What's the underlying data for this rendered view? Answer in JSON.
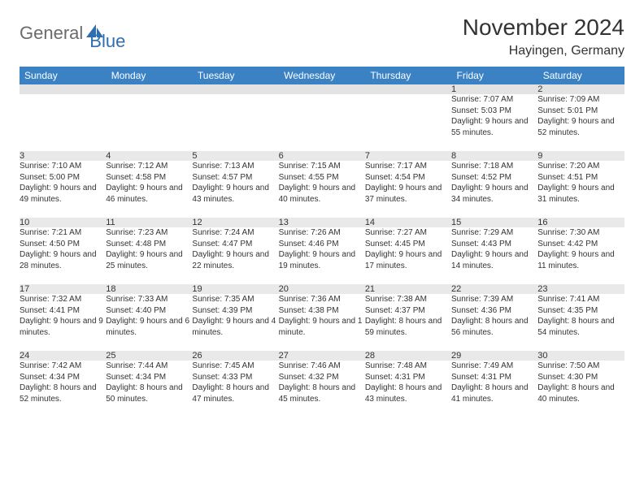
{
  "brand": {
    "part1": "General",
    "part2": "Blue"
  },
  "title": "November 2024",
  "location": "Hayingen, Germany",
  "weekdays": [
    "Sunday",
    "Monday",
    "Tuesday",
    "Wednesday",
    "Thursday",
    "Friday",
    "Saturday"
  ],
  "colors": {
    "header_bg": "#3b82c4",
    "header_text": "#ffffff",
    "daynum_bg": "#e9e9e9",
    "row_divider": "#9bb6cf",
    "brand_gray": "#6b6b6b",
    "brand_blue": "#2f6fb0"
  },
  "weeks": [
    [
      {
        "n": "",
        "sr": "",
        "ss": "",
        "dl": ""
      },
      {
        "n": "",
        "sr": "",
        "ss": "",
        "dl": ""
      },
      {
        "n": "",
        "sr": "",
        "ss": "",
        "dl": ""
      },
      {
        "n": "",
        "sr": "",
        "ss": "",
        "dl": ""
      },
      {
        "n": "",
        "sr": "",
        "ss": "",
        "dl": ""
      },
      {
        "n": "1",
        "sr": "Sunrise: 7:07 AM",
        "ss": "Sunset: 5:03 PM",
        "dl": "Daylight: 9 hours and 55 minutes."
      },
      {
        "n": "2",
        "sr": "Sunrise: 7:09 AM",
        "ss": "Sunset: 5:01 PM",
        "dl": "Daylight: 9 hours and 52 minutes."
      }
    ],
    [
      {
        "n": "3",
        "sr": "Sunrise: 7:10 AM",
        "ss": "Sunset: 5:00 PM",
        "dl": "Daylight: 9 hours and 49 minutes."
      },
      {
        "n": "4",
        "sr": "Sunrise: 7:12 AM",
        "ss": "Sunset: 4:58 PM",
        "dl": "Daylight: 9 hours and 46 minutes."
      },
      {
        "n": "5",
        "sr": "Sunrise: 7:13 AM",
        "ss": "Sunset: 4:57 PM",
        "dl": "Daylight: 9 hours and 43 minutes."
      },
      {
        "n": "6",
        "sr": "Sunrise: 7:15 AM",
        "ss": "Sunset: 4:55 PM",
        "dl": "Daylight: 9 hours and 40 minutes."
      },
      {
        "n": "7",
        "sr": "Sunrise: 7:17 AM",
        "ss": "Sunset: 4:54 PM",
        "dl": "Daylight: 9 hours and 37 minutes."
      },
      {
        "n": "8",
        "sr": "Sunrise: 7:18 AM",
        "ss": "Sunset: 4:52 PM",
        "dl": "Daylight: 9 hours and 34 minutes."
      },
      {
        "n": "9",
        "sr": "Sunrise: 7:20 AM",
        "ss": "Sunset: 4:51 PM",
        "dl": "Daylight: 9 hours and 31 minutes."
      }
    ],
    [
      {
        "n": "10",
        "sr": "Sunrise: 7:21 AM",
        "ss": "Sunset: 4:50 PM",
        "dl": "Daylight: 9 hours and 28 minutes."
      },
      {
        "n": "11",
        "sr": "Sunrise: 7:23 AM",
        "ss": "Sunset: 4:48 PM",
        "dl": "Daylight: 9 hours and 25 minutes."
      },
      {
        "n": "12",
        "sr": "Sunrise: 7:24 AM",
        "ss": "Sunset: 4:47 PM",
        "dl": "Daylight: 9 hours and 22 minutes."
      },
      {
        "n": "13",
        "sr": "Sunrise: 7:26 AM",
        "ss": "Sunset: 4:46 PM",
        "dl": "Daylight: 9 hours and 19 minutes."
      },
      {
        "n": "14",
        "sr": "Sunrise: 7:27 AM",
        "ss": "Sunset: 4:45 PM",
        "dl": "Daylight: 9 hours and 17 minutes."
      },
      {
        "n": "15",
        "sr": "Sunrise: 7:29 AM",
        "ss": "Sunset: 4:43 PM",
        "dl": "Daylight: 9 hours and 14 minutes."
      },
      {
        "n": "16",
        "sr": "Sunrise: 7:30 AM",
        "ss": "Sunset: 4:42 PM",
        "dl": "Daylight: 9 hours and 11 minutes."
      }
    ],
    [
      {
        "n": "17",
        "sr": "Sunrise: 7:32 AM",
        "ss": "Sunset: 4:41 PM",
        "dl": "Daylight: 9 hours and 9 minutes."
      },
      {
        "n": "18",
        "sr": "Sunrise: 7:33 AM",
        "ss": "Sunset: 4:40 PM",
        "dl": "Daylight: 9 hours and 6 minutes."
      },
      {
        "n": "19",
        "sr": "Sunrise: 7:35 AM",
        "ss": "Sunset: 4:39 PM",
        "dl": "Daylight: 9 hours and 4 minutes."
      },
      {
        "n": "20",
        "sr": "Sunrise: 7:36 AM",
        "ss": "Sunset: 4:38 PM",
        "dl": "Daylight: 9 hours and 1 minute."
      },
      {
        "n": "21",
        "sr": "Sunrise: 7:38 AM",
        "ss": "Sunset: 4:37 PM",
        "dl": "Daylight: 8 hours and 59 minutes."
      },
      {
        "n": "22",
        "sr": "Sunrise: 7:39 AM",
        "ss": "Sunset: 4:36 PM",
        "dl": "Daylight: 8 hours and 56 minutes."
      },
      {
        "n": "23",
        "sr": "Sunrise: 7:41 AM",
        "ss": "Sunset: 4:35 PM",
        "dl": "Daylight: 8 hours and 54 minutes."
      }
    ],
    [
      {
        "n": "24",
        "sr": "Sunrise: 7:42 AM",
        "ss": "Sunset: 4:34 PM",
        "dl": "Daylight: 8 hours and 52 minutes."
      },
      {
        "n": "25",
        "sr": "Sunrise: 7:44 AM",
        "ss": "Sunset: 4:34 PM",
        "dl": "Daylight: 8 hours and 50 minutes."
      },
      {
        "n": "26",
        "sr": "Sunrise: 7:45 AM",
        "ss": "Sunset: 4:33 PM",
        "dl": "Daylight: 8 hours and 47 minutes."
      },
      {
        "n": "27",
        "sr": "Sunrise: 7:46 AM",
        "ss": "Sunset: 4:32 PM",
        "dl": "Daylight: 8 hours and 45 minutes."
      },
      {
        "n": "28",
        "sr": "Sunrise: 7:48 AM",
        "ss": "Sunset: 4:31 PM",
        "dl": "Daylight: 8 hours and 43 minutes."
      },
      {
        "n": "29",
        "sr": "Sunrise: 7:49 AM",
        "ss": "Sunset: 4:31 PM",
        "dl": "Daylight: 8 hours and 41 minutes."
      },
      {
        "n": "30",
        "sr": "Sunrise: 7:50 AM",
        "ss": "Sunset: 4:30 PM",
        "dl": "Daylight: 8 hours and 40 minutes."
      }
    ]
  ]
}
